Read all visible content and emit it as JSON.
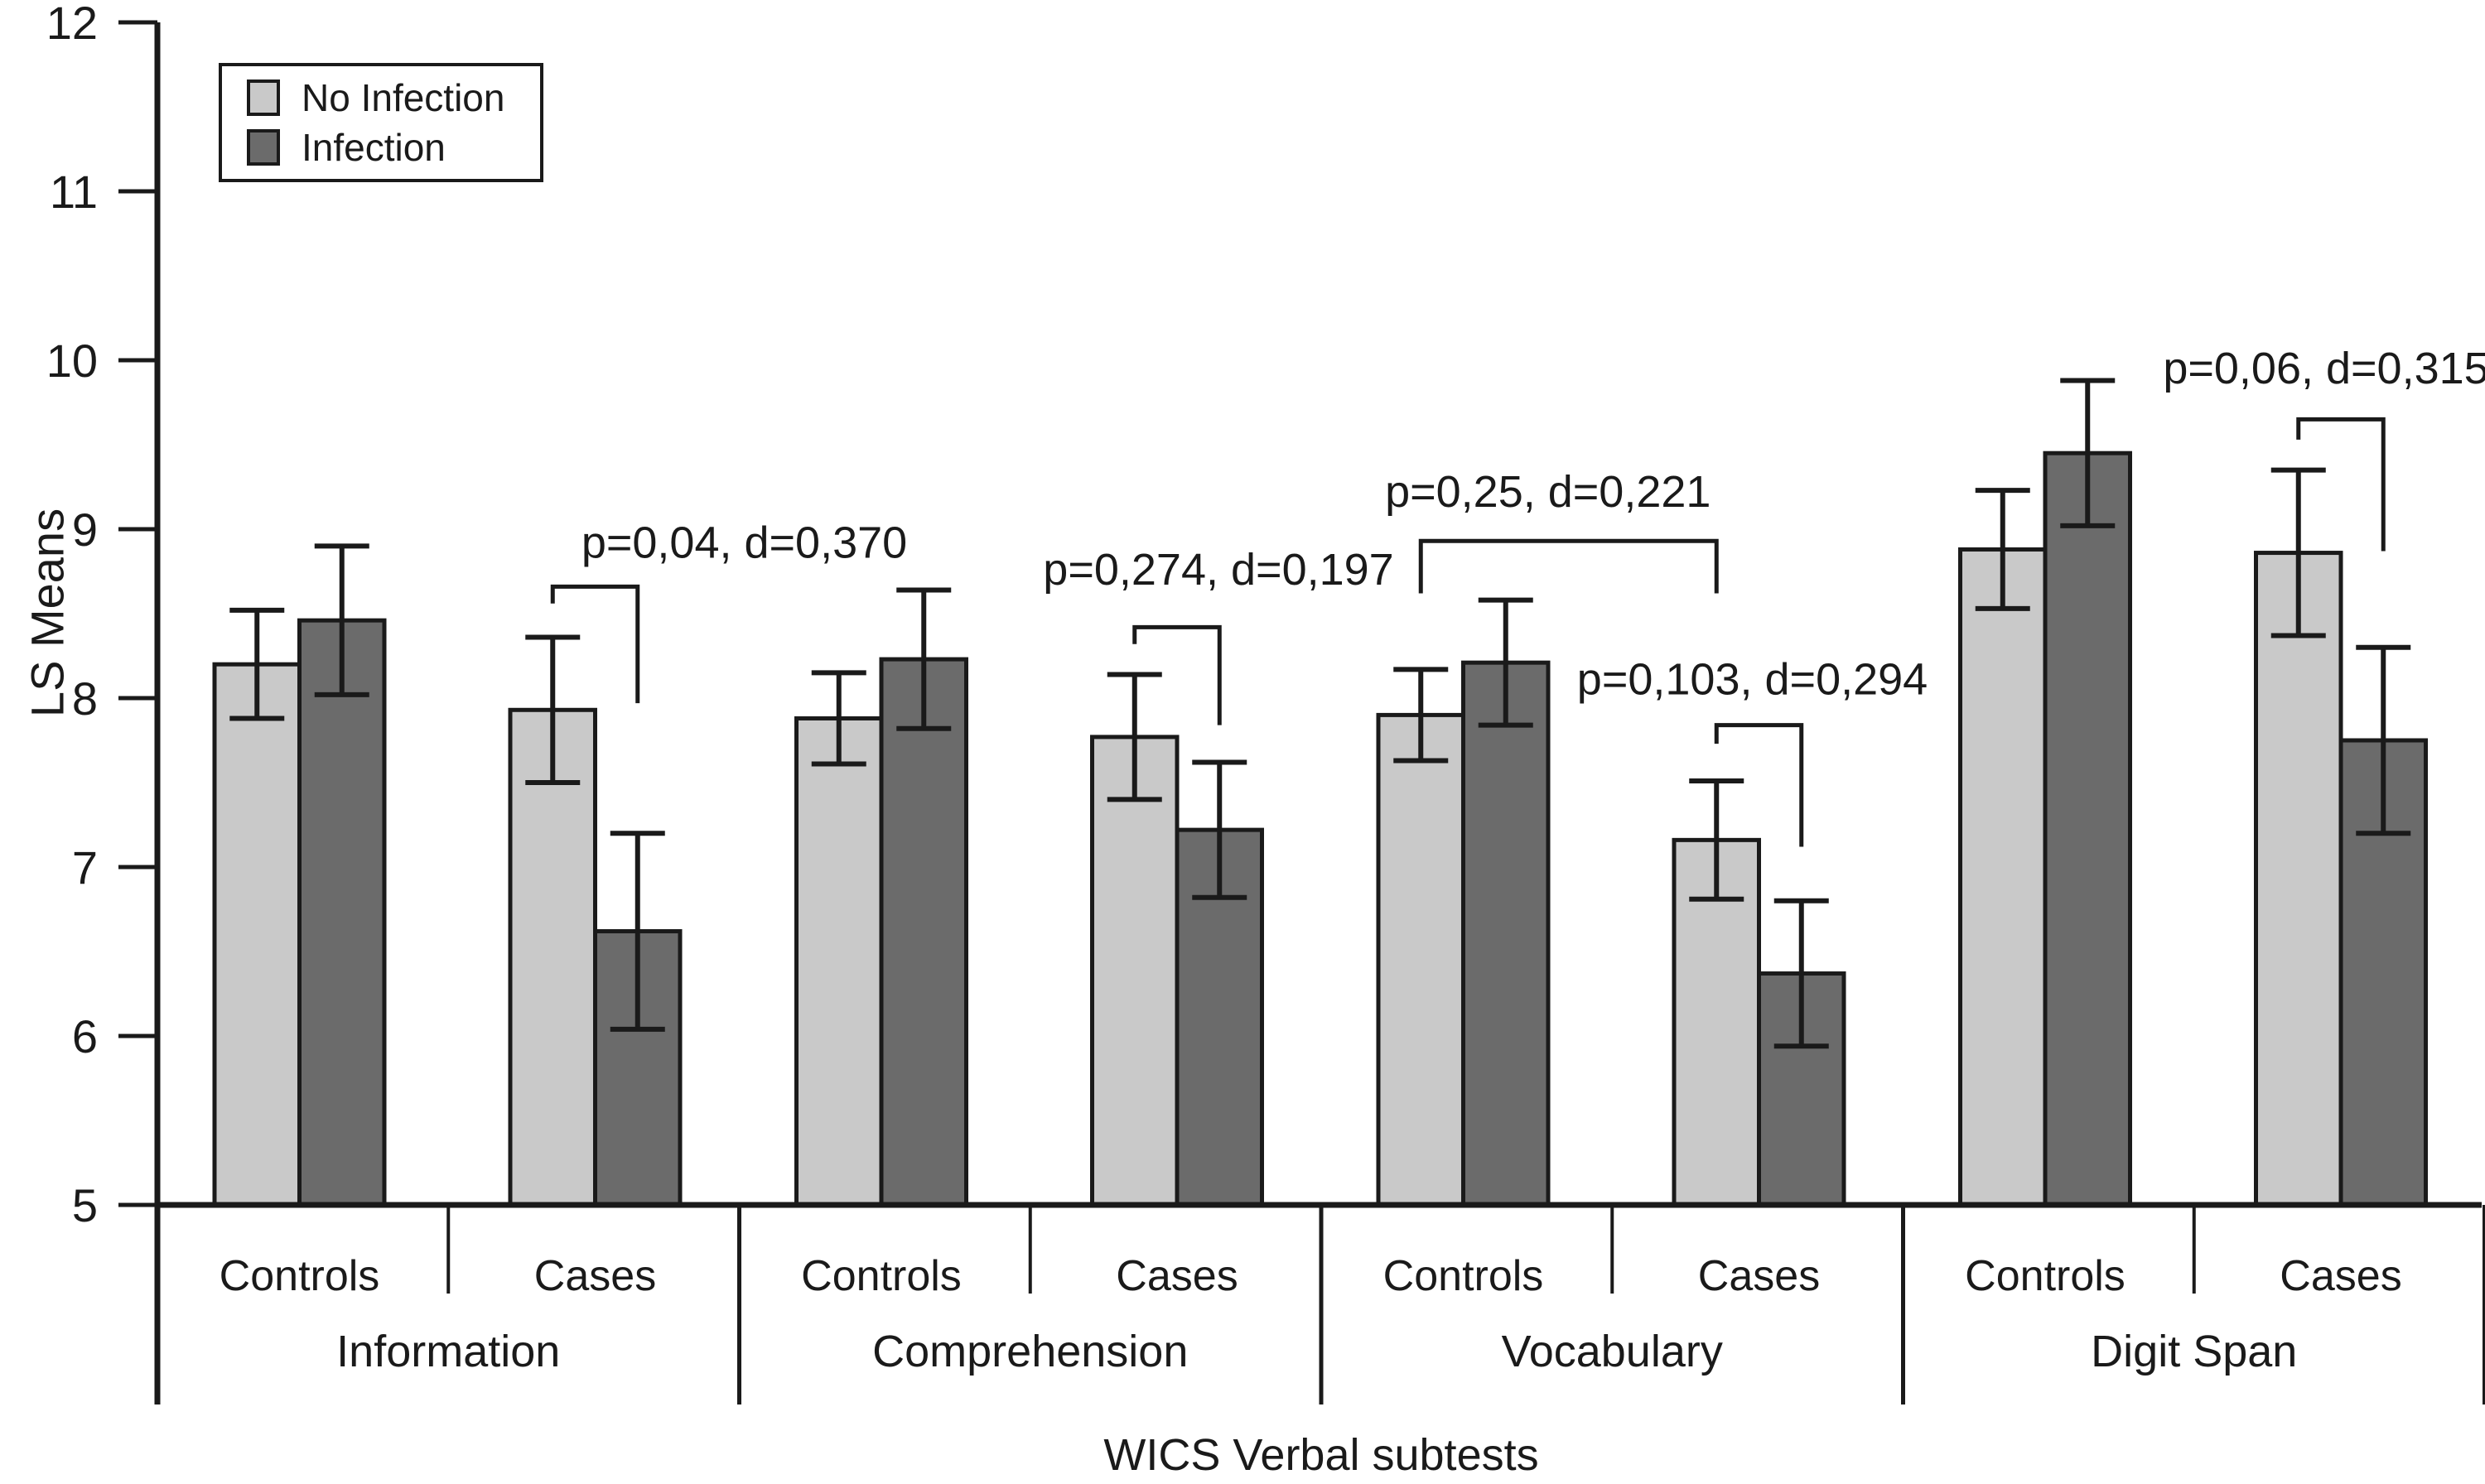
{
  "chart_data": {
    "type": "bar",
    "title": "",
    "xlabel": "WICS Verbal subtests",
    "ylabel": "LS Means",
    "ylim": [
      5,
      12
    ],
    "yticks": [
      5,
      6,
      7,
      8,
      9,
      10,
      11,
      12
    ],
    "grid": false,
    "legend_position": "top-left",
    "groups": [
      "Information",
      "Comprehension",
      "Vocabulary",
      "Digit Span"
    ],
    "categories_per_group": [
      "Controls",
      "Cases"
    ],
    "slot_labels": [
      "Information Controls",
      "Information Cases",
      "Comprehension Controls",
      "Comprehension Cases",
      "Vocabulary Controls",
      "Vocabulary Cases",
      "Digit Span Controls",
      "Digit Span Cases"
    ],
    "series": [
      {
        "name": "No Infection",
        "color": "#c9c9c9",
        "values": [
          8.2,
          7.93,
          7.88,
          7.77,
          7.9,
          7.16,
          8.88,
          8.86
        ],
        "errors": [
          0.32,
          0.43,
          0.27,
          0.37,
          0.27,
          0.35,
          0.35,
          0.49
        ]
      },
      {
        "name": "Infection",
        "color": "#6b6b6b",
        "values": [
          8.46,
          6.62,
          8.23,
          7.22,
          8.21,
          6.37,
          9.45,
          7.75
        ],
        "errors": [
          0.44,
          0.58,
          0.41,
          0.4,
          0.37,
          0.43,
          0.43,
          0.55
        ]
      }
    ],
    "annotations": [
      {
        "label": "p=0,04, d=0,370",
        "from": [
          1,
          0
        ],
        "to": [
          1,
          1
        ],
        "top": 8.66,
        "from_end": 8.56,
        "to_end": 7.97,
        "text_y": 8.92,
        "text_dx": 180
      },
      {
        "label": "p=0,274, d=0,197",
        "from": [
          3,
          0
        ],
        "to": [
          3,
          1
        ],
        "top": 8.42,
        "from_end": 8.32,
        "to_end": 7.84,
        "text_y": 8.76,
        "text_dx": 50
      },
      {
        "label": "p=0,25, d=0,221",
        "from": [
          4,
          0
        ],
        "to": [
          5,
          0
        ],
        "top": 8.93,
        "from_end": 8.62,
        "to_end": 8.62,
        "text_y": 9.22,
        "text_dx": -25
      },
      {
        "label": "p=0,103, d=0,294",
        "from": [
          5,
          0
        ],
        "to": [
          5,
          1
        ],
        "top": 7.84,
        "from_end": 7.73,
        "to_end": 7.12,
        "text_y": 8.11,
        "text_dx": -8
      },
      {
        "label": "p=0,06, d=0,315",
        "from": [
          7,
          0
        ],
        "to": [
          7,
          1
        ],
        "top": 9.65,
        "from_end": 9.53,
        "to_end": 8.87,
        "text_y": 9.95,
        "text_dx": -18
      }
    ],
    "ink_color": "#1a1a1a"
  }
}
